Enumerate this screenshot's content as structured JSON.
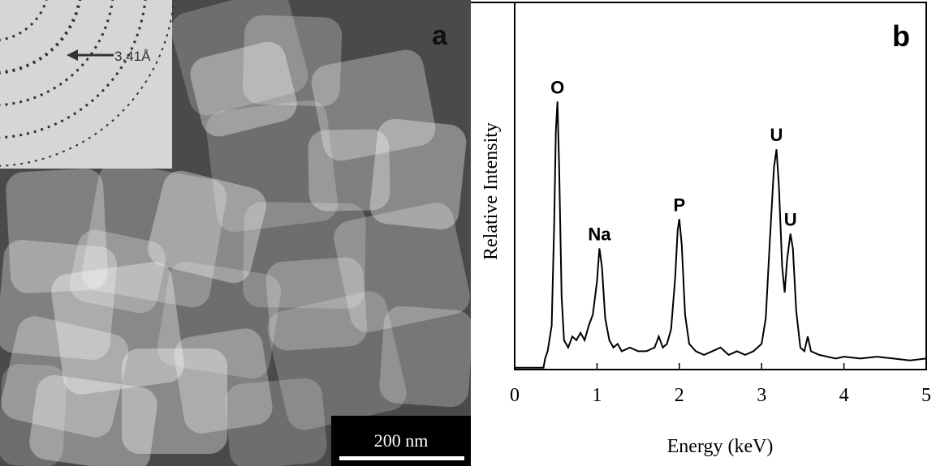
{
  "panel_a": {
    "label": "a",
    "diffraction_label": "3.41Å",
    "scale_bar": "200 nm"
  },
  "chart_data": {
    "type": "line",
    "panel_label": "b",
    "xlabel": "Energy (keV)",
    "ylabel": "Relative Intensity",
    "xlim": [
      0,
      5
    ],
    "xticks": [
      0,
      1,
      2,
      3,
      4,
      5
    ],
    "ylim": [
      0,
      100
    ],
    "color": "#000000",
    "x": [
      0,
      0.3,
      0.35,
      0.37,
      0.4,
      0.45,
      0.48,
      0.5,
      0.52,
      0.54,
      0.57,
      0.6,
      0.65,
      0.7,
      0.75,
      0.8,
      0.85,
      0.9,
      0.95,
      1.0,
      1.03,
      1.06,
      1.1,
      1.15,
      1.2,
      1.25,
      1.3,
      1.4,
      1.5,
      1.6,
      1.7,
      1.75,
      1.8,
      1.85,
      1.9,
      1.95,
      1.98,
      2.0,
      2.03,
      2.07,
      2.12,
      2.2,
      2.3,
      2.4,
      2.5,
      2.6,
      2.7,
      2.8,
      2.9,
      3.0,
      3.05,
      3.1,
      3.15,
      3.18,
      3.21,
      3.25,
      3.28,
      3.31,
      3.35,
      3.38,
      3.42,
      3.47,
      3.52,
      3.56,
      3.6,
      3.7,
      3.8,
      3.9,
      4.0,
      4.2,
      4.4,
      4.6,
      4.8,
      5.0
    ],
    "values": [
      0.5,
      0.5,
      0.5,
      3,
      5,
      12,
      40,
      65,
      73,
      55,
      20,
      8,
      6,
      9,
      8,
      10,
      8,
      12,
      15,
      24,
      33,
      28,
      14,
      8,
      6,
      7,
      5,
      6,
      5,
      5,
      6,
      9,
      6,
      7,
      11,
      25,
      38,
      41,
      34,
      15,
      7,
      5,
      4,
      5,
      6,
      4,
      5,
      4,
      5,
      7,
      14,
      35,
      55,
      60,
      50,
      28,
      21,
      30,
      37,
      33,
      16,
      6,
      5,
      9,
      5,
      4,
      3.5,
      3,
      3.5,
      3,
      3.5,
      3,
      2.5,
      3
    ],
    "annotations": [
      {
        "text": "O",
        "x": 0.52,
        "y": 73
      },
      {
        "text": "Na",
        "x": 1.03,
        "y": 33
      },
      {
        "text": "P",
        "x": 2.0,
        "y": 41
      },
      {
        "text": "U",
        "x": 3.18,
        "y": 60
      },
      {
        "text": "U",
        "x": 3.35,
        "y": 37
      }
    ]
  }
}
